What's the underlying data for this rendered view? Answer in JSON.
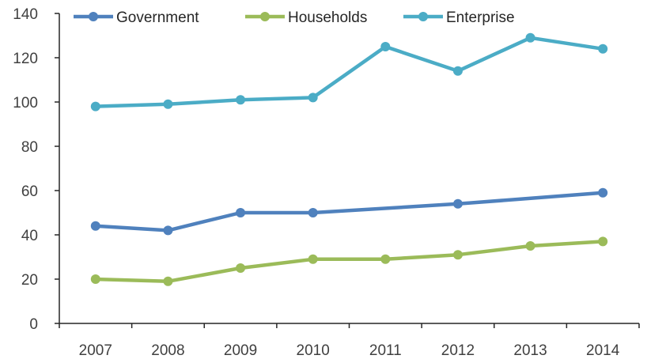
{
  "chart_data": {
    "type": "line",
    "title": "",
    "xlabel": "",
    "ylabel": "",
    "categories": [
      "2007",
      "2008",
      "2009",
      "2010",
      "2011",
      "2012",
      "2013",
      "2014"
    ],
    "ylim": [
      0,
      140
    ],
    "yticks": [
      "0",
      "20",
      "40",
      "60",
      "80",
      "100",
      "120",
      "140"
    ],
    "grid": false,
    "legend_position": "top-left",
    "series": [
      {
        "name": "Government",
        "color": "#4f81bd",
        "values": [
          44,
          42,
          50,
          50,
          null,
          54,
          null,
          59
        ]
      },
      {
        "name": "Households",
        "color": "#9bbb59",
        "values": [
          20,
          19,
          25,
          29,
          29,
          31,
          35,
          37
        ]
      },
      {
        "name": "Enterprise",
        "color": "#4bacc6",
        "values": [
          98,
          99,
          101,
          102,
          125,
          114,
          129,
          124
        ]
      }
    ]
  }
}
